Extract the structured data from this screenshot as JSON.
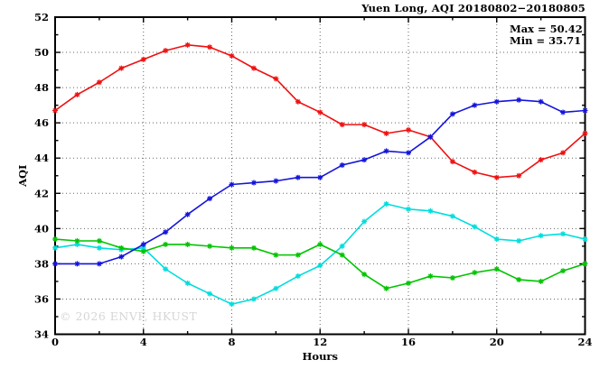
{
  "header": {
    "title": "Yuen Long, AQI 20180802−20180805"
  },
  "annotation": {
    "max_label": "Max = 50.42",
    "min_label": "Min = 35.71"
  },
  "watermark": "© 2026 ENVF, HKUST",
  "chart_data": {
    "type": "line",
    "title": "Yuen Long, AQI 20180802−20180805",
    "xlabel": "Hours",
    "ylabel": "AQI",
    "xlim": [
      0,
      24
    ],
    "ylim": [
      34,
      52
    ],
    "x_major_ticks": [
      0,
      4,
      8,
      12,
      16,
      20,
      24
    ],
    "x_minor_ticks": [
      2,
      6,
      10,
      14,
      18,
      22
    ],
    "y_major_ticks": [
      34,
      36,
      38,
      40,
      42,
      44,
      46,
      48,
      50,
      52
    ],
    "y_minor_ticks": [
      35,
      37,
      39,
      41,
      43,
      45,
      47,
      49,
      51
    ],
    "grid": "dotted gridlines at x=4,8,12,16,20 and y=36..50 step 2",
    "grid_x": [
      4,
      8,
      12,
      16,
      20
    ],
    "grid_y": [
      36,
      38,
      40,
      42,
      44,
      46,
      48,
      50
    ],
    "legend_position": "none",
    "marker": "asterisk",
    "annotations": [
      "Max = 50.42",
      "Min = 35.71"
    ],
    "x": [
      0,
      1,
      2,
      3,
      4,
      5,
      6,
      7,
      8,
      9,
      10,
      11,
      12,
      13,
      14,
      15,
      16,
      17,
      18,
      19,
      20,
      21,
      22,
      23,
      24
    ],
    "series": [
      {
        "name": "series-red",
        "color": "#f01010",
        "values": [
          46.7,
          47.6,
          48.3,
          49.1,
          49.6,
          50.1,
          50.42,
          50.3,
          49.8,
          49.1,
          48.5,
          47.2,
          46.6,
          45.9,
          45.9,
          45.4,
          45.6,
          45.2,
          43.8,
          43.2,
          42.9,
          43.0,
          43.9,
          44.3,
          45.4
        ]
      },
      {
        "name": "series-cyan",
        "color": "#00dddd",
        "values": [
          38.9,
          39.1,
          38.9,
          38.8,
          38.9,
          37.7,
          36.9,
          36.3,
          35.71,
          36.0,
          36.6,
          37.3,
          37.9,
          39.0,
          40.4,
          41.4,
          41.1,
          41.0,
          40.7,
          40.1,
          39.4,
          39.3,
          39.6,
          39.7,
          39.4
        ]
      },
      {
        "name": "series-green",
        "color": "#00c400",
        "values": [
          39.4,
          39.3,
          39.3,
          38.9,
          38.7,
          39.1,
          39.1,
          39.0,
          38.9,
          38.9,
          38.5,
          38.5,
          39.1,
          38.5,
          37.4,
          36.6,
          36.9,
          37.3,
          37.2,
          37.5,
          37.7,
          37.1,
          37.0,
          37.6,
          38.0
        ]
      },
      {
        "name": "series-blue",
        "color": "#1414dc",
        "values": [
          38.0,
          38.0,
          38.0,
          38.4,
          39.1,
          39.8,
          40.8,
          41.7,
          42.5,
          42.6,
          42.7,
          42.9,
          42.9,
          43.6,
          43.9,
          44.4,
          44.3,
          45.2,
          46.5,
          47.0,
          47.2,
          47.3,
          47.2,
          46.6,
          46.7
        ]
      }
    ]
  }
}
